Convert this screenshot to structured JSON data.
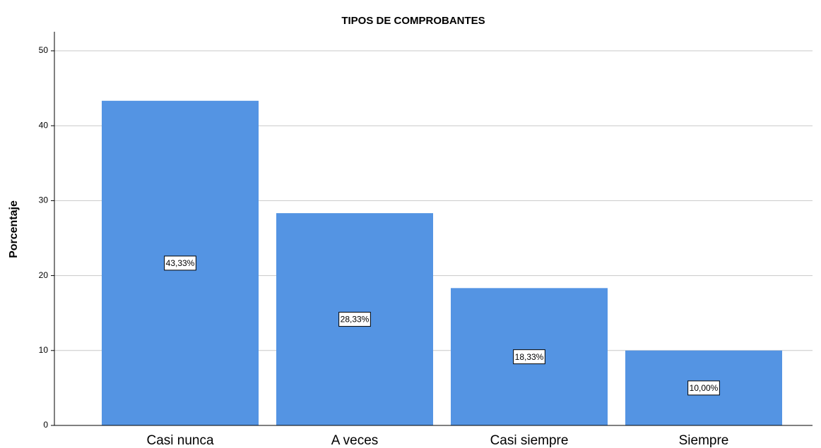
{
  "chart_data": {
    "type": "bar",
    "title": "TIPOS DE COMPROBANTES",
    "y_label": "Porcentaje",
    "categories": [
      "Casi nunca",
      "A veces",
      "Casi siempre",
      "Siempre"
    ],
    "values": [
      43.33,
      28.33,
      18.33,
      10.0
    ],
    "value_labels": [
      "43,33%",
      "28,33%",
      "18,33%",
      "10,00%"
    ],
    "color": "#5494e3",
    "ylim": [
      0,
      50
    ],
    "yticks": [
      0,
      10,
      20,
      30,
      40,
      50
    ],
    "grid": true
  }
}
